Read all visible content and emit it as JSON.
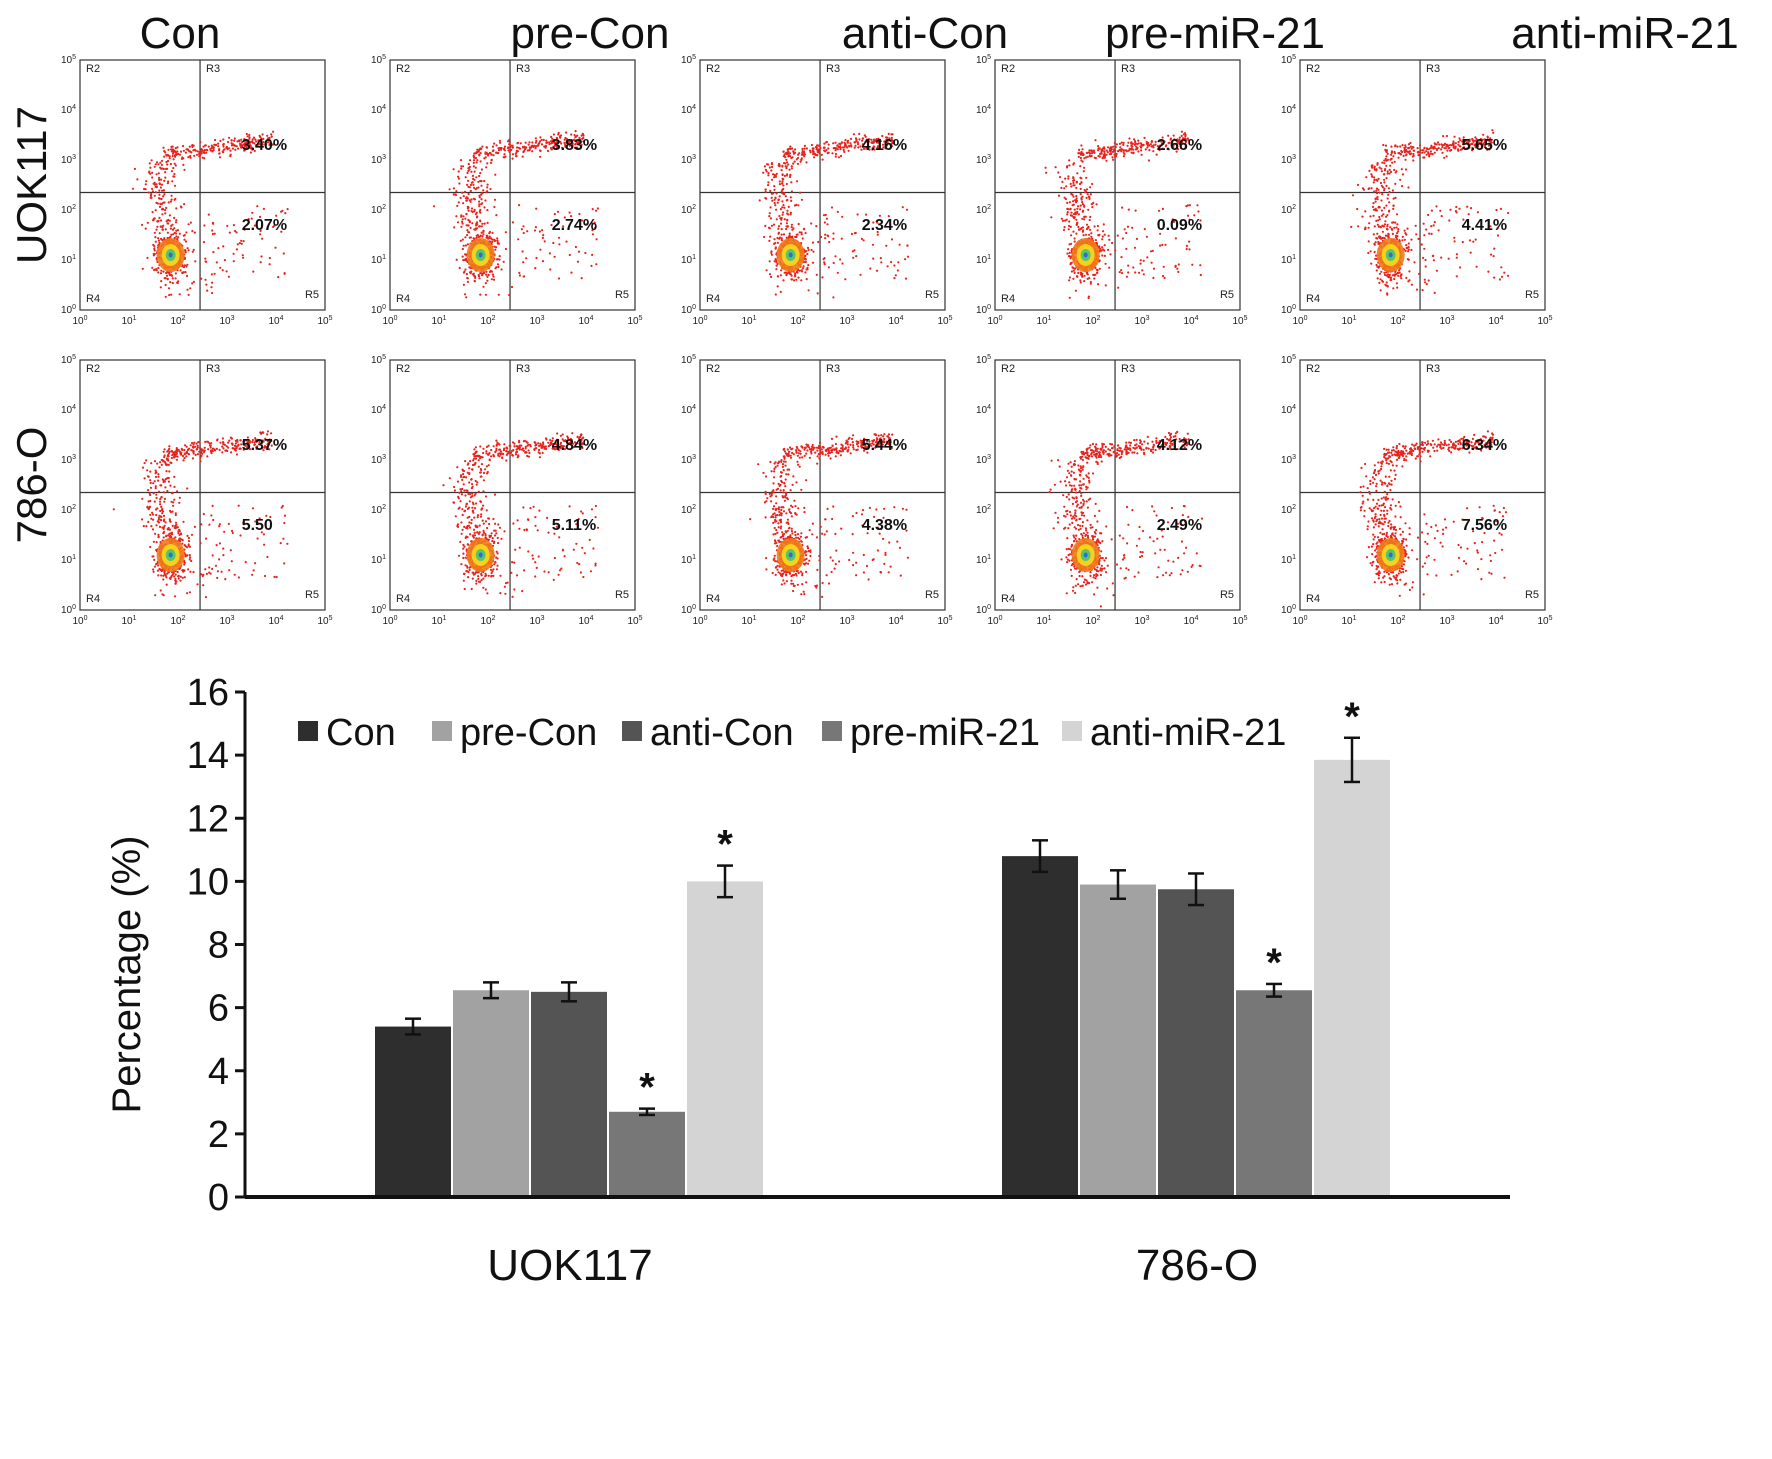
{
  "chart_data": [
    {
      "type": "scatter",
      "subtype": "flow-cytometry-quadrant-grid",
      "columns": [
        "Con",
        "pre-Con",
        "anti-Con",
        "pre-miR-21",
        "anti-miR-21"
      ],
      "rows": [
        "UOK117",
        "786-O"
      ],
      "axis_range_log10": [
        0,
        5
      ],
      "axis_tick_base": "10",
      "axis_tick_exponents": [
        "0",
        "1",
        "2",
        "3",
        "4",
        "5"
      ],
      "region_labels": [
        "R2",
        "R3",
        "R4",
        "R5"
      ],
      "quadrant_values": [
        [
          {
            "upper_right": "3.40%",
            "lower_right": "2.07%"
          },
          {
            "upper_right": "3.83%",
            "lower_right": "2.74%"
          },
          {
            "upper_right": "4.16%",
            "lower_right": "2.34%"
          },
          {
            "upper_right": "2.66%",
            "lower_right": "0.09%"
          },
          {
            "upper_right": "5.65%",
            "lower_right": "4.41%"
          }
        ],
        [
          {
            "upper_right": "5.37%",
            "lower_right": "5.50"
          },
          {
            "upper_right": "4.84%",
            "lower_right": "5.11%"
          },
          {
            "upper_right": "5.44%",
            "lower_right": "4.38%"
          },
          {
            "upper_right": "4.12%",
            "lower_right": "2.49%"
          },
          {
            "upper_right": "6.34%",
            "lower_right": "7.56%"
          }
        ]
      ]
    },
    {
      "type": "bar",
      "categories": [
        "UOK117",
        "786-O"
      ],
      "ylabel": "Percentage (%)",
      "xlabel": "",
      "ylim": [
        0,
        16
      ],
      "yticks": [
        0,
        2,
        4,
        6,
        8,
        10,
        12,
        14,
        16
      ],
      "legend_position": "top",
      "series": [
        {
          "name": "Con",
          "color": "#2e2e2e",
          "values": [
            5.4,
            10.8
          ],
          "errors": [
            0.25,
            0.5
          ],
          "significant": [
            false,
            false
          ]
        },
        {
          "name": "pre-Con",
          "color": "#a2a2a2",
          "values": [
            6.55,
            9.9
          ],
          "errors": [
            0.25,
            0.45
          ],
          "significant": [
            false,
            false
          ]
        },
        {
          "name": "anti-Con",
          "color": "#545454",
          "values": [
            6.5,
            9.75
          ],
          "errors": [
            0.3,
            0.5
          ],
          "significant": [
            false,
            false
          ]
        },
        {
          "name": "pre-miR-21",
          "color": "#777777",
          "values": [
            2.7,
            6.55
          ],
          "errors": [
            0.1,
            0.2
          ],
          "significant": [
            true,
            true
          ]
        },
        {
          "name": "anti-miR-21",
          "color": "#d4d4d4",
          "values": [
            10.0,
            13.85
          ],
          "errors": [
            0.5,
            0.7
          ],
          "significant": [
            true,
            true
          ]
        }
      ],
      "significance_marker": "*"
    }
  ]
}
